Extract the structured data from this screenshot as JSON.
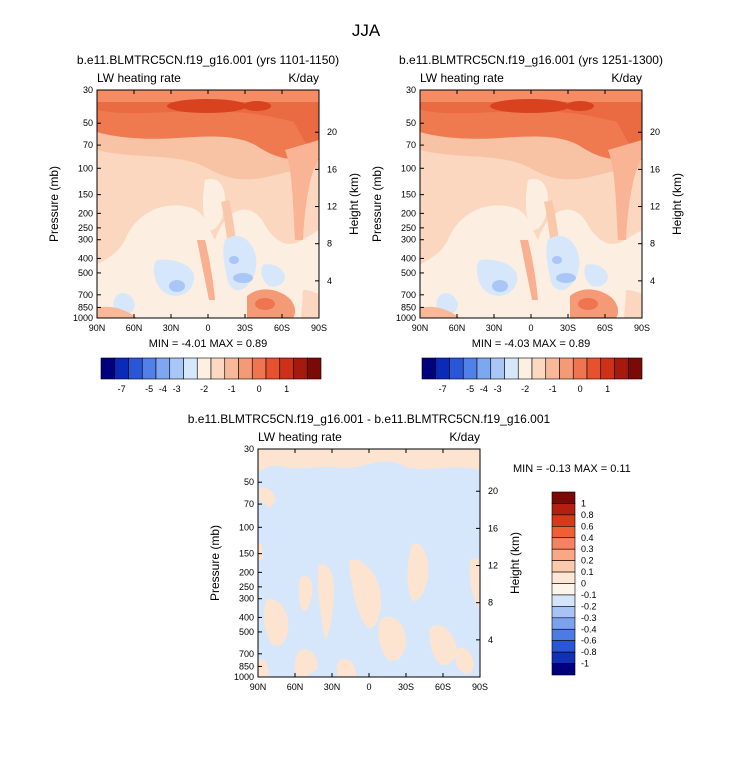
{
  "page": {
    "title": "JJA"
  },
  "chart_data": [
    {
      "type": "heatmap",
      "title": "b.e11.BLMTRC5CN.f19_g16.001 (yrs 1101-1150)",
      "left_label": "LW heating rate",
      "right_label": "K/day",
      "xlabel": "",
      "ylabel": "Pressure (mb)",
      "y2label": "Height (km)",
      "x_ticks": [
        "90N",
        "60N",
        "30N",
        "0",
        "30S",
        "60S",
        "90S"
      ],
      "y_ticks": [
        "30",
        "50",
        "70",
        "100",
        "150",
        "200",
        "250",
        "300",
        "400",
        "500",
        "700",
        "850",
        "1000"
      ],
      "y2_ticks": [
        "20",
        "16",
        "12",
        "8",
        "4"
      ],
      "ylim": [
        1000,
        30
      ],
      "y_scale": "log",
      "min_max": "MIN =  -4.01   MAX =   0.89",
      "min": -4.01,
      "max": 0.89
    },
    {
      "type": "heatmap",
      "title": "b.e11.BLMTRC5CN.f19_g16.001 (yrs 1251-1300)",
      "left_label": "LW heating rate",
      "right_label": "K/day",
      "xlabel": "",
      "ylabel": "Pressure (mb)",
      "y2label": "Height (km)",
      "x_ticks": [
        "90N",
        "60N",
        "30N",
        "0",
        "30S",
        "60S",
        "90S"
      ],
      "y_ticks": [
        "30",
        "50",
        "70",
        "100",
        "150",
        "200",
        "250",
        "300",
        "400",
        "500",
        "700",
        "850",
        "1000"
      ],
      "y2_ticks": [
        "20",
        "16",
        "12",
        "8",
        "4"
      ],
      "ylim": [
        1000,
        30
      ],
      "y_scale": "log",
      "min_max": "MIN =  -4.03   MAX =   0.89",
      "min": -4.03,
      "max": 0.89
    },
    {
      "type": "heatmap",
      "title": "b.e11.BLMTRC5CN.f19_g16.001 - b.e11.BLMTRC5CN.f19_g16.001",
      "left_label": "LW heating rate",
      "right_label": "K/day",
      "xlabel": "",
      "ylabel": "Pressure (mb)",
      "y2label": "Height (km)",
      "x_ticks": [
        "90N",
        "60N",
        "30N",
        "0",
        "30S",
        "60S",
        "90S"
      ],
      "y_ticks": [
        "30",
        "50",
        "70",
        "100",
        "150",
        "200",
        "250",
        "300",
        "400",
        "500",
        "700",
        "850",
        "1000"
      ],
      "y2_ticks": [
        "20",
        "16",
        "12",
        "8",
        "4"
      ],
      "ylim": [
        1000,
        30
      ],
      "y_scale": "log",
      "min_max": "MIN =  -0.13   MAX =   0.11",
      "min": -0.13,
      "max": 0.11
    }
  ],
  "colorbars": {
    "top": {
      "labels": [
        "-7",
        "-5",
        "-4",
        "-3",
        "-2",
        "-1",
        "0",
        "1"
      ],
      "colors": [
        "#00007f",
        "#0a2bb8",
        "#2a56d8",
        "#5080e8",
        "#7ea7f2",
        "#a9c6f7",
        "#d7e7fb",
        "#fdf0e3",
        "#fcd8c0",
        "#f9b898",
        "#f59a76",
        "#ef7550",
        "#e6512e",
        "#cf3018",
        "#a61a0e",
        "#7a0a05"
      ]
    },
    "bottom": {
      "labels": [
        "1",
        "0.8",
        "0.6",
        "0.4",
        "0.3",
        "0.2",
        "0.1",
        "0",
        "-0.1",
        "-0.2",
        "-0.3",
        "-0.4",
        "-0.6",
        "-0.8",
        "-1"
      ],
      "colors": [
        "#7a0a05",
        "#b3200f",
        "#d63a1d",
        "#ee5f36",
        "#f5835e",
        "#f9a785",
        "#fbc9ab",
        "#fde6d3",
        "#fdf5ec",
        "#d3e4fb",
        "#a8c4f5",
        "#7ba2ee",
        "#4d7be4",
        "#2a55d4",
        "#1030b8",
        "#00007f"
      ]
    }
  },
  "colors": {
    "diff_base": "#d6e7fb",
    "diff_pos": "#fde4d0"
  }
}
